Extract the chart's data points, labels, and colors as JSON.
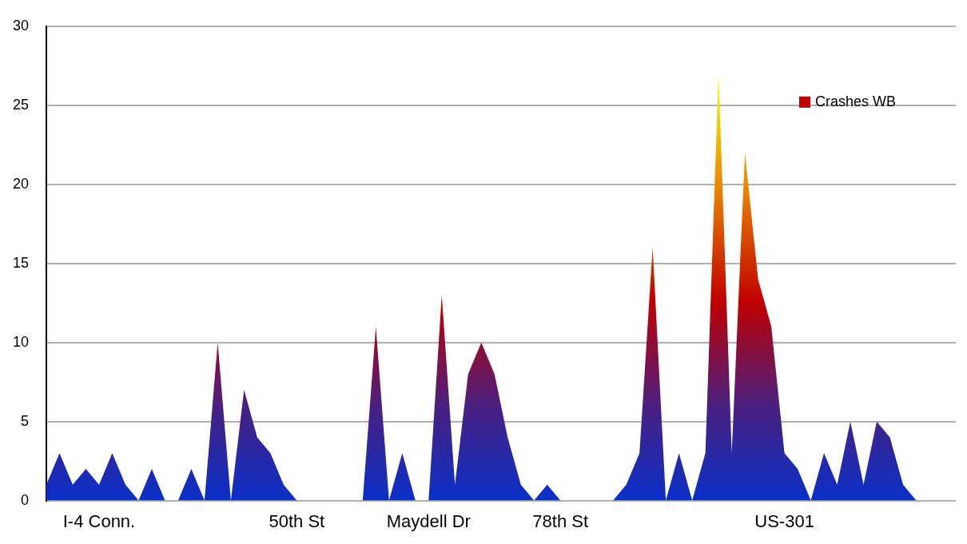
{
  "chart_data": {
    "type": "area",
    "categories": [
      null,
      null,
      null,
      null,
      "I-4 Conn.",
      null,
      null,
      null,
      null,
      null,
      null,
      null,
      null,
      null,
      null,
      null,
      null,
      null,
      null,
      "50th St",
      null,
      null,
      null,
      null,
      null,
      null,
      null,
      null,
      null,
      "Maydell Dr",
      null,
      null,
      null,
      null,
      null,
      null,
      null,
      null,
      null,
      "78th St",
      null,
      null,
      null,
      null,
      null,
      null,
      null,
      null,
      null,
      null,
      null,
      null,
      null,
      null,
      null,
      null,
      "US-301",
      null,
      null,
      null,
      null,
      null,
      null,
      null,
      null,
      null,
      null,
      null,
      null,
      null
    ],
    "series": [
      {
        "name": "Crashes WB",
        "color": "#c00000",
        "values": [
          1,
          3,
          1,
          2,
          1,
          3,
          1,
          0,
          2,
          0,
          0,
          2,
          0,
          10,
          0,
          7,
          4,
          3,
          1,
          0,
          0,
          0,
          0,
          0,
          0,
          11,
          0,
          3,
          0,
          0,
          13,
          1,
          8,
          10,
          8,
          4,
          1,
          0,
          1,
          0,
          0,
          0,
          0,
          0,
          1,
          3,
          16,
          0,
          3,
          0,
          3,
          27,
          3,
          22,
          14,
          11,
          3,
          2,
          0,
          3,
          1,
          5,
          1,
          5,
          4,
          1,
          0,
          0,
          0,
          0
        ]
      }
    ],
    "ylim": [
      0,
      30
    ],
    "yticks": [
      0,
      5,
      10,
      15,
      20,
      25,
      30
    ],
    "grid": "y",
    "legend": "top right"
  }
}
